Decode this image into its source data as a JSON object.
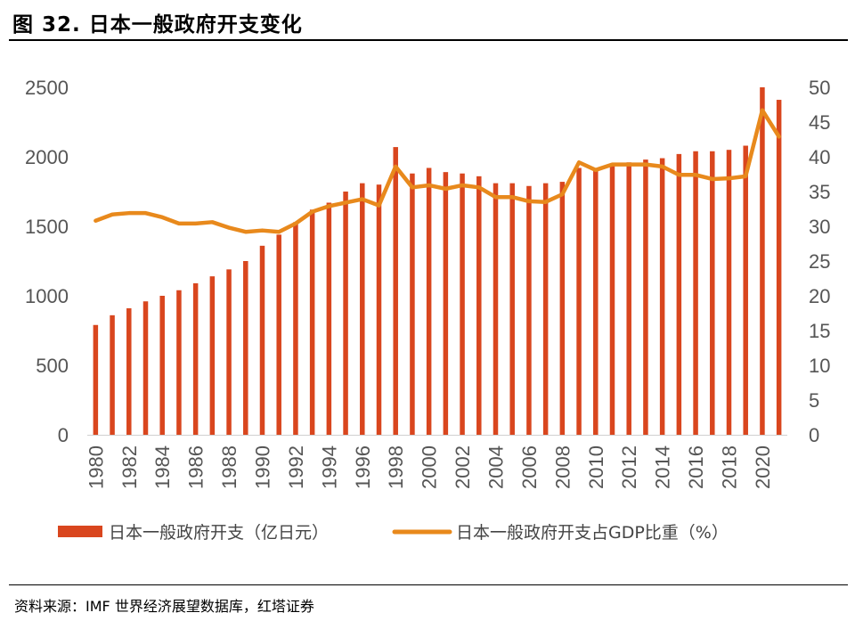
{
  "figure": {
    "title": "图 32.  日本一般政府开支变化",
    "source": "资料来源：IMF 世界经济展望数据库，红塔证券"
  },
  "chart_data": {
    "type": "bar+line",
    "title": "",
    "x": [
      1980,
      1981,
      1982,
      1983,
      1984,
      1985,
      1986,
      1987,
      1988,
      1989,
      1990,
      1991,
      1992,
      1993,
      1994,
      1995,
      1996,
      1997,
      1998,
      1999,
      2000,
      2001,
      2002,
      2003,
      2004,
      2005,
      2006,
      2007,
      2008,
      2009,
      2010,
      2011,
      2012,
      2013,
      2014,
      2015,
      2016,
      2017,
      2018,
      2019,
      2020,
      2021
    ],
    "x_tick_labels": [
      "1980",
      "1982",
      "1984",
      "1986",
      "1988",
      "1990",
      "1992",
      "1994",
      "1996",
      "1998",
      "2000",
      "2002",
      "2004",
      "2006",
      "2008",
      "2010",
      "2012",
      "2014",
      "2016",
      "2018",
      "2020"
    ],
    "series": [
      {
        "name": "日本一般政府开支（亿日元）",
        "type": "bar",
        "axis": "left",
        "color": "#D9461E",
        "values": [
          790,
          860,
          910,
          960,
          1000,
          1040,
          1090,
          1140,
          1190,
          1250,
          1360,
          1440,
          1530,
          1620,
          1670,
          1750,
          1810,
          1800,
          2070,
          1880,
          1920,
          1890,
          1880,
          1860,
          1810,
          1810,
          1790,
          1810,
          1820,
          1920,
          1920,
          1940,
          1960,
          1980,
          1990,
          2020,
          2040,
          2040,
          2050,
          2080,
          2500,
          2410
        ]
      },
      {
        "name": "日本一般政府开支占GDP比重（%）",
        "type": "line",
        "axis": "right",
        "color": "#E8891C",
        "values": [
          30.8,
          31.7,
          31.9,
          31.9,
          31.3,
          30.4,
          30.4,
          30.6,
          29.8,
          29.2,
          29.4,
          29.2,
          30.4,
          32.1,
          32.9,
          33.4,
          33.9,
          33.0,
          38.6,
          35.6,
          35.9,
          35.4,
          35.9,
          35.6,
          34.2,
          34.2,
          33.6,
          33.5,
          34.6,
          39.2,
          38.1,
          38.9,
          38.9,
          38.9,
          38.6,
          37.4,
          37.4,
          36.8,
          36.9,
          37.2,
          46.7,
          42.9
        ]
      }
    ],
    "y_left": {
      "range": [
        0,
        2500
      ],
      "ticks": [
        "0",
        "500",
        "1000",
        "1500",
        "2000",
        "2500"
      ]
    },
    "y_right": {
      "range": [
        0,
        50
      ],
      "ticks": [
        "0",
        "5",
        "10",
        "15",
        "20",
        "25",
        "30",
        "35",
        "40",
        "45",
        "50"
      ]
    },
    "grid": false,
    "legend_position": "bottom"
  }
}
